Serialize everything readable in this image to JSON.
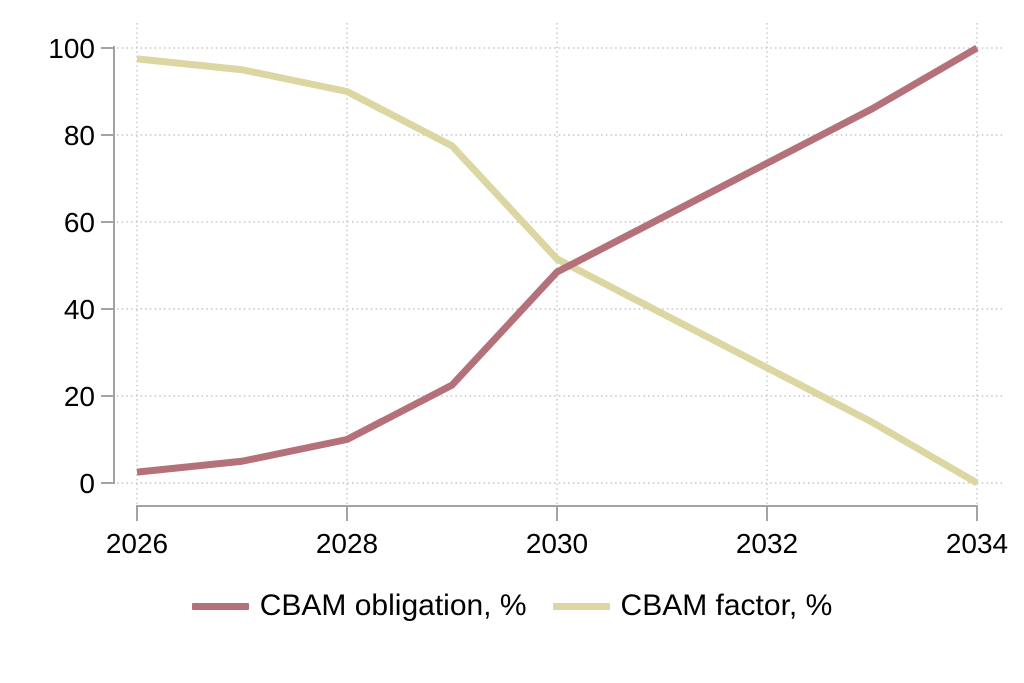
{
  "chart_data": {
    "type": "line",
    "title": "",
    "xlabel": "",
    "ylabel": "",
    "x": [
      2026,
      2027,
      2028,
      2029,
      2030,
      2031,
      2032,
      2033,
      2034
    ],
    "series": [
      {
        "name": "CBAM obligation, %",
        "color": "#b5717a",
        "values": [
          2.5,
          5,
          10,
          22.5,
          48.5,
          61,
          73.5,
          86,
          100
        ]
      },
      {
        "name": "CBAM factor, %",
        "color": "#dcd6a2",
        "values": [
          97.5,
          95,
          90,
          77.5,
          51.5,
          39,
          26.5,
          14,
          0
        ]
      }
    ],
    "xticks": [
      2026,
      2028,
      2030,
      2032,
      2034
    ],
    "yticks": [
      0,
      20,
      40,
      60,
      80,
      100
    ],
    "xlim": [
      2026,
      2034
    ],
    "ylim": [
      0,
      100
    ],
    "grid": "dotted-horizontal-and-vertical",
    "legend_position": "bottom-center"
  },
  "colors": {
    "background": "#ffffff",
    "axis_line": "#a3a3a3",
    "gridline": "#c6c6c6",
    "tick_label": "#000000"
  }
}
